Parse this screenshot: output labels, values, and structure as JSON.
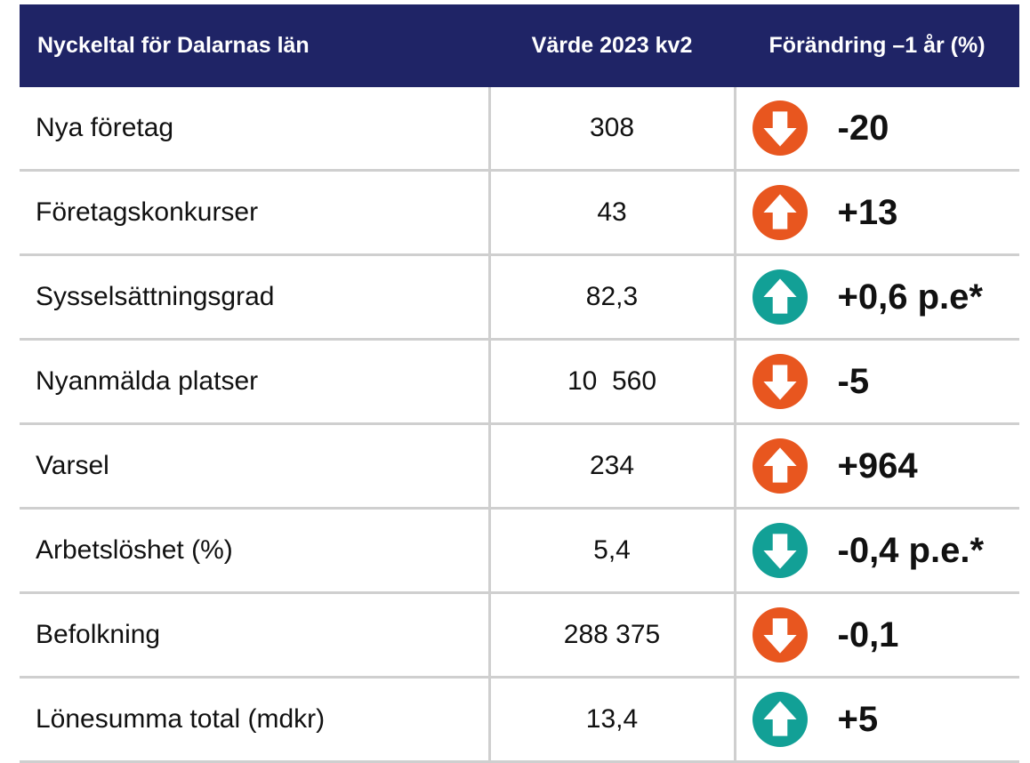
{
  "table": {
    "header": [
      "Nyckeltal för Dalarnas län",
      "Värde 2023 kv2",
      "Förändring –1 år (%)"
    ],
    "rows": [
      {
        "name": "Nya företag",
        "value": "308",
        "change": "-20",
        "trend": "down",
        "color": "#e8561f"
      },
      {
        "name": "Företagskonkurser",
        "value": "43",
        "change": "+13",
        "trend": "up",
        "color": "#e8561f"
      },
      {
        "name": "Sysselsättningsgrad",
        "value": "82,3",
        "change": "+0,6 p.e*",
        "trend": "up",
        "color": "#12a096"
      },
      {
        "name": "Nyanmälda platser",
        "value": "10  560",
        "change": "-5",
        "trend": "down",
        "color": "#e8561f"
      },
      {
        "name": "Varsel",
        "value": "234",
        "change": "+964",
        "trend": "up",
        "color": "#e8561f"
      },
      {
        "name": "Arbetslöshet (%)",
        "value": "5,4",
        "change": "-0,4 p.e.*",
        "trend": "down",
        "color": "#12a096"
      },
      {
        "name": "Befolkning",
        "value": "288 375",
        "change": "-0,1",
        "trend": "down",
        "color": "#e8561f"
      },
      {
        "name": "Lönesumma total (mdkr)",
        "value": "13,4",
        "change": "+5",
        "trend": "up",
        "color": "#12a096"
      }
    ]
  }
}
